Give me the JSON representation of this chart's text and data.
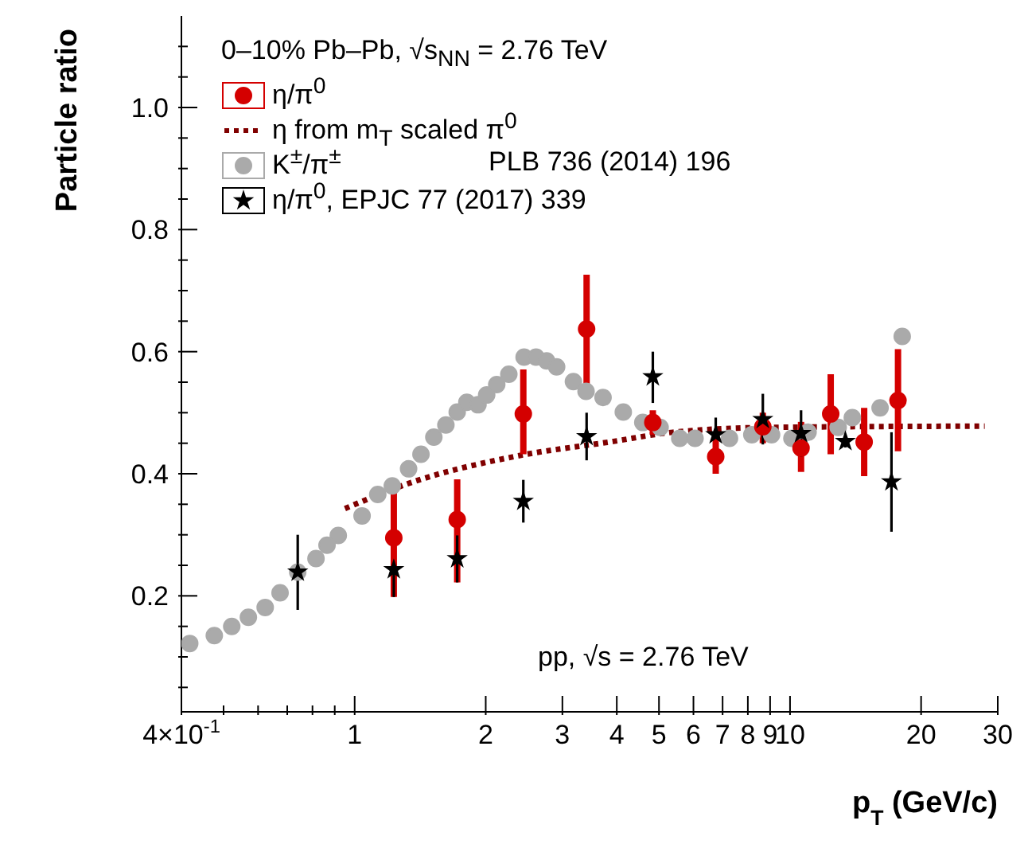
{
  "chart_data": {
    "type": "scatter",
    "xlabel": "p$_{T}$ (GeV/c)",
    "ylabel": "Particle ratio",
    "legend_title": "0–10% Pb–Pb, √s$_{NN}$ = 2.76 TeV",
    "log": "x",
    "legend": "top left",
    "grid": false,
    "xlim": [
      0.4,
      30
    ],
    "xticks": [
      {
        "value": 0.4,
        "label": "4×10$^{-1}$"
      },
      {
        "value": 0.5,
        "label": null
      },
      {
        "value": 0.6,
        "label": null
      },
      {
        "value": 0.7,
        "label": null
      },
      {
        "value": 0.8,
        "label": null
      },
      {
        "value": 0.9,
        "label": null
      },
      1,
      2,
      3,
      4,
      5,
      6,
      7,
      8,
      9,
      10,
      20,
      30
    ],
    "ylim": [
      0.01,
      1.15
    ],
    "yticks": [
      {
        "value": 0.05,
        "label": null
      },
      {
        "value": 0.1,
        "label": null
      },
      {
        "value": 0.15,
        "label": null
      },
      {
        "value": 0.2,
        "label": "0.2"
      },
      {
        "value": 0.25,
        "label": null
      },
      {
        "value": 0.3,
        "label": null
      },
      {
        "value": 0.35,
        "label": null
      },
      {
        "value": 0.4,
        "label": "0.4"
      },
      {
        "value": 0.45,
        "label": null
      },
      {
        "value": 0.5,
        "label": null
      },
      {
        "value": 0.55,
        "label": null
      },
      {
        "value": 0.6,
        "label": "0.6"
      },
      {
        "value": 0.65,
        "label": null
      },
      {
        "value": 0.7,
        "label": null
      },
      {
        "value": 0.75,
        "label": null
      },
      {
        "value": 0.8,
        "label": "0.8"
      },
      {
        "value": 0.85,
        "label": null
      },
      {
        "value": 0.9,
        "label": null
      },
      {
        "value": 0.95,
        "label": null
      },
      {
        "value": 1,
        "label": "1.0"
      },
      {
        "value": 1.05,
        "label": null
      },
      {
        "value": 1.1,
        "label": null
      }
    ],
    "annotations": [
      "PLB 736 (2014) 196",
      "pp, √s = 2.76 TeV"
    ],
    "series": [
      {
        "name": "η/π$^{0}$",
        "marker": "circle",
        "color": "#d40000",
        "x": [
          1.23,
          1.72,
          2.44,
          3.41,
          4.84,
          6.75,
          8.66,
          10.6,
          12.4,
          14.8,
          17.7
        ],
        "values": [
          0.295,
          0.325,
          0.498,
          0.637,
          0.484,
          0.428,
          0.477,
          0.442,
          0.498,
          0.452,
          0.52
        ],
        "errors": [
          [
            0.198,
            0.372
          ],
          [
            0.222,
            0.391
          ],
          [
            0.432,
            0.571
          ],
          [
            0.547,
            0.726
          ],
          0.02,
          [
            0.4,
            0.46
          ],
          [
            0.45,
            0.5
          ],
          [
            0.403,
            0.485
          ],
          [
            0.432,
            0.563
          ],
          [
            0.396,
            0.508
          ],
          [
            0.437,
            0.604
          ]
        ]
      },
      {
        "name": "η from m$_{T}$ scaled π$^{0}$",
        "type": "line",
        "marker": "none",
        "line_style": "dotted",
        "color": "#800000",
        "x": [
          0.95,
          1.38,
          2.32,
          3.93,
          5.38,
          9.07,
          28
        ],
        "values": [
          0.343,
          0.388,
          0.428,
          0.453,
          0.468,
          0.476,
          0.478
        ]
      },
      {
        "name": "K$^{±}$/π$^{±}$",
        "marker": "circle",
        "color": "#aaaaaa",
        "x": [
          0.418,
          0.476,
          0.522,
          0.57,
          0.623,
          0.674,
          0.74,
          0.815,
          0.864,
          0.917,
          1.04,
          1.13,
          1.22,
          1.33,
          1.42,
          1.52,
          1.62,
          1.72,
          1.81,
          1.92,
          2.01,
          2.12,
          2.26,
          2.45,
          2.61,
          2.76,
          2.91,
          3.18,
          3.4,
          3.72,
          4.14,
          4.59,
          5.03,
          5.58,
          6.05,
          7.26,
          8.17,
          9.07,
          10.1,
          11,
          12.9,
          13.9,
          16.1,
          18.1
        ],
        "values": [
          0.122,
          0.135,
          0.15,
          0.165,
          0.181,
          0.205,
          0.239,
          0.261,
          0.283,
          0.299,
          0.331,
          0.366,
          0.38,
          0.408,
          0.432,
          0.46,
          0.48,
          0.501,
          0.517,
          0.513,
          0.529,
          0.546,
          0.563,
          0.591,
          0.591,
          0.585,
          0.575,
          0.551,
          0.535,
          0.525,
          0.501,
          0.484,
          0.476,
          0.458,
          0.458,
          0.458,
          0.464,
          0.464,
          0.458,
          0.468,
          0.476,
          0.492,
          0.508,
          0.625
        ]
      },
      {
        "name": "η/π$^{0}$, EPJC 77 (2017) 339",
        "marker": "star",
        "color": "#000000",
        "x": [
          0.74,
          1.23,
          1.72,
          2.44,
          3.41,
          4.84,
          6.75,
          8.66,
          10.6,
          13.4,
          17.1
        ],
        "values": [
          0.239,
          0.243,
          0.261,
          0.355,
          0.461,
          0.559,
          0.464,
          0.489,
          0.466,
          0.453,
          0.387
        ],
        "errors": [
          [
            0.177,
            0.3
          ],
          [
            0.198,
            0.243
          ],
          [
            0.222,
            0.299
          ],
          [
            0.32,
            0.39
          ],
          [
            0.422,
            0.5
          ],
          [
            0.516,
            0.6
          ],
          [
            0.464,
            0.492
          ],
          [
            0.448,
            0.531
          ],
          [
            0.428,
            0.504
          ],
          0.01,
          [
            0.305,
            0.468
          ]
        ]
      }
    ]
  }
}
